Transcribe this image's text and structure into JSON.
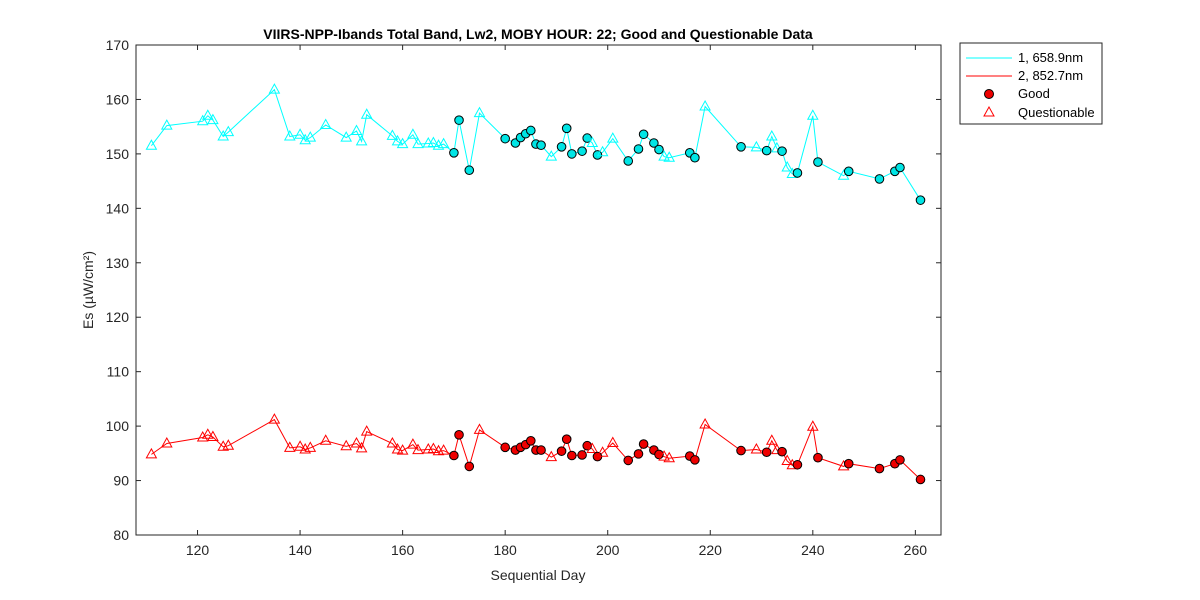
{
  "chart_data": {
    "type": "line",
    "title": "VIIRS-NPP-Ibands Total Band,  Lw2, MOBY HOUR: 22;  Good and Questionable Data",
    "xlabel": "Sequential Day",
    "ylabel": "Es (µW/cm²)",
    "xlim": [
      108,
      265
    ],
    "ylim": [
      80,
      170
    ],
    "xticks": [
      120,
      140,
      160,
      180,
      200,
      220,
      240,
      260
    ],
    "yticks": [
      80,
      90,
      100,
      110,
      120,
      130,
      140,
      150,
      160,
      170
    ],
    "grid": false,
    "legend_position": "outside-top-right",
    "colors": {
      "series1": "#00ffff",
      "series2": "#ff0000",
      "good_fill": "#ee0000",
      "good_fill_cyan": "#00e5e5",
      "axis": "#262626"
    },
    "legend": {
      "line1": "1, 658.9nm",
      "line2": "2, 852.7nm",
      "good": "Good",
      "questionable": "Questionable"
    },
    "series": [
      {
        "name": "1, 658.9nm",
        "color": "#00ffff",
        "points": [
          {
            "x": 111,
            "y": 151.5,
            "q": "Q"
          },
          {
            "x": 114,
            "y": 155.2,
            "q": "Q"
          },
          {
            "x": 121,
            "y": 156.0,
            "q": "Q"
          },
          {
            "x": 122,
            "y": 157.0,
            "q": "Q"
          },
          {
            "x": 123,
            "y": 156.2,
            "q": "Q"
          },
          {
            "x": 125,
            "y": 153.2,
            "q": "Q"
          },
          {
            "x": 126,
            "y": 154.0,
            "q": "Q"
          },
          {
            "x": 135,
            "y": 161.8,
            "q": "Q"
          },
          {
            "x": 138,
            "y": 153.2,
            "q": "Q"
          },
          {
            "x": 140,
            "y": 153.5,
            "q": "Q"
          },
          {
            "x": 141,
            "y": 152.5,
            "q": "Q"
          },
          {
            "x": 142,
            "y": 153.0,
            "q": "Q"
          },
          {
            "x": 145,
            "y": 155.3,
            "q": "Q"
          },
          {
            "x": 149,
            "y": 153.0,
            "q": "Q"
          },
          {
            "x": 151,
            "y": 154.2,
            "q": "Q"
          },
          {
            "x": 152,
            "y": 152.3,
            "q": "Q"
          },
          {
            "x": 153,
            "y": 157.2,
            "q": "Q"
          },
          {
            "x": 158,
            "y": 153.3,
            "q": "Q"
          },
          {
            "x": 159,
            "y": 152.3,
            "q": "Q"
          },
          {
            "x": 160,
            "y": 151.8,
            "q": "Q"
          },
          {
            "x": 162,
            "y": 153.5,
            "q": "Q"
          },
          {
            "x": 163,
            "y": 151.8,
            "q": "Q"
          },
          {
            "x": 165,
            "y": 151.9,
            "q": "Q"
          },
          {
            "x": 166,
            "y": 152.0,
            "q": "Q"
          },
          {
            "x": 167,
            "y": 151.5,
            "q": "Q"
          },
          {
            "x": 168,
            "y": 151.8,
            "q": "Q"
          },
          {
            "x": 170,
            "y": 150.2,
            "q": "G"
          },
          {
            "x": 171,
            "y": 156.2,
            "q": "G"
          },
          {
            "x": 173,
            "y": 147.0,
            "q": "G"
          },
          {
            "x": 175,
            "y": 157.5,
            "q": "Q"
          },
          {
            "x": 180,
            "y": 152.8,
            "q": "G"
          },
          {
            "x": 182,
            "y": 152.0,
            "q": "G"
          },
          {
            "x": 183,
            "y": 153.0,
            "q": "G"
          },
          {
            "x": 184,
            "y": 153.7,
            "q": "G"
          },
          {
            "x": 185,
            "y": 154.3,
            "q": "G"
          },
          {
            "x": 186,
            "y": 151.8,
            "q": "G"
          },
          {
            "x": 187,
            "y": 151.6,
            "q": "G"
          },
          {
            "x": 189,
            "y": 149.5,
            "q": "Q"
          },
          {
            "x": 191,
            "y": 151.3,
            "q": "G"
          },
          {
            "x": 192,
            "y": 154.7,
            "q": "G"
          },
          {
            "x": 193,
            "y": 150.0,
            "q": "G"
          },
          {
            "x": 195,
            "y": 150.5,
            "q": "G"
          },
          {
            "x": 196,
            "y": 152.9,
            "q": "G"
          },
          {
            "x": 197,
            "y": 152.0,
            "q": "Q"
          },
          {
            "x": 198,
            "y": 149.8,
            "q": "G"
          },
          {
            "x": 199,
            "y": 150.3,
            "q": "Q"
          },
          {
            "x": 201,
            "y": 152.8,
            "q": "Q"
          },
          {
            "x": 204,
            "y": 148.7,
            "q": "G"
          },
          {
            "x": 206,
            "y": 150.9,
            "q": "G"
          },
          {
            "x": 207,
            "y": 153.6,
            "q": "G"
          },
          {
            "x": 209,
            "y": 152.0,
            "q": "G"
          },
          {
            "x": 210,
            "y": 150.8,
            "q": "G"
          },
          {
            "x": 211,
            "y": 149.5,
            "q": "Q"
          },
          {
            "x": 212,
            "y": 149.3,
            "q": "Q"
          },
          {
            "x": 216,
            "y": 150.2,
            "q": "G"
          },
          {
            "x": 217,
            "y": 149.3,
            "q": "G"
          },
          {
            "x": 219,
            "y": 158.7,
            "q": "Q"
          },
          {
            "x": 226,
            "y": 151.3,
            "q": "G"
          },
          {
            "x": 229,
            "y": 151.2,
            "q": "Q"
          },
          {
            "x": 231,
            "y": 150.6,
            "q": "G"
          },
          {
            "x": 232,
            "y": 153.2,
            "q": "Q"
          },
          {
            "x": 233,
            "y": 151.0,
            "q": "Q"
          },
          {
            "x": 234,
            "y": 150.5,
            "q": "G"
          },
          {
            "x": 235,
            "y": 147.5,
            "q": "Q"
          },
          {
            "x": 236,
            "y": 146.3,
            "q": "Q"
          },
          {
            "x": 237,
            "y": 146.5,
            "q": "G"
          },
          {
            "x": 240,
            "y": 157.0,
            "q": "Q"
          },
          {
            "x": 241,
            "y": 148.5,
            "q": "G"
          },
          {
            "x": 246,
            "y": 146.0,
            "q": "Q"
          },
          {
            "x": 247,
            "y": 146.8,
            "q": "G"
          },
          {
            "x": 253,
            "y": 145.4,
            "q": "G"
          },
          {
            "x": 256,
            "y": 146.8,
            "q": "G"
          },
          {
            "x": 257,
            "y": 147.5,
            "q": "G"
          },
          {
            "x": 261,
            "y": 141.5,
            "q": "G"
          }
        ]
      },
      {
        "name": "2, 852.7nm",
        "color": "#ff0000",
        "points": [
          {
            "x": 111,
            "y": 94.8,
            "q": "Q"
          },
          {
            "x": 114,
            "y": 96.8,
            "q": "Q"
          },
          {
            "x": 121,
            "y": 97.9,
            "q": "Q"
          },
          {
            "x": 122,
            "y": 98.4,
            "q": "Q"
          },
          {
            "x": 123,
            "y": 98.0,
            "q": "Q"
          },
          {
            "x": 125,
            "y": 96.2,
            "q": "Q"
          },
          {
            "x": 126,
            "y": 96.4,
            "q": "Q"
          },
          {
            "x": 135,
            "y": 101.2,
            "q": "Q"
          },
          {
            "x": 138,
            "y": 96.0,
            "q": "Q"
          },
          {
            "x": 140,
            "y": 96.2,
            "q": "Q"
          },
          {
            "x": 141,
            "y": 95.7,
            "q": "Q"
          },
          {
            "x": 142,
            "y": 96.0,
            "q": "Q"
          },
          {
            "x": 145,
            "y": 97.3,
            "q": "Q"
          },
          {
            "x": 149,
            "y": 96.3,
            "q": "Q"
          },
          {
            "x": 151,
            "y": 96.8,
            "q": "Q"
          },
          {
            "x": 152,
            "y": 95.9,
            "q": "Q"
          },
          {
            "x": 153,
            "y": 99.0,
            "q": "Q"
          },
          {
            "x": 158,
            "y": 96.8,
            "q": "Q"
          },
          {
            "x": 159,
            "y": 95.7,
            "q": "Q"
          },
          {
            "x": 160,
            "y": 95.5,
            "q": "Q"
          },
          {
            "x": 162,
            "y": 96.6,
            "q": "Q"
          },
          {
            "x": 163,
            "y": 95.6,
            "q": "Q"
          },
          {
            "x": 165,
            "y": 95.7,
            "q": "Q"
          },
          {
            "x": 166,
            "y": 95.8,
            "q": "Q"
          },
          {
            "x": 167,
            "y": 95.4,
            "q": "Q"
          },
          {
            "x": 168,
            "y": 95.5,
            "q": "Q"
          },
          {
            "x": 170,
            "y": 94.6,
            "q": "G"
          },
          {
            "x": 171,
            "y": 98.4,
            "q": "G"
          },
          {
            "x": 173,
            "y": 92.6,
            "q": "G"
          },
          {
            "x": 175,
            "y": 99.3,
            "q": "Q"
          },
          {
            "x": 180,
            "y": 96.1,
            "q": "G"
          },
          {
            "x": 182,
            "y": 95.6,
            "q": "G"
          },
          {
            "x": 183,
            "y": 96.1,
            "q": "G"
          },
          {
            "x": 184,
            "y": 96.6,
            "q": "G"
          },
          {
            "x": 185,
            "y": 97.3,
            "q": "G"
          },
          {
            "x": 186,
            "y": 95.6,
            "q": "G"
          },
          {
            "x": 187,
            "y": 95.6,
            "q": "G"
          },
          {
            "x": 189,
            "y": 94.3,
            "q": "Q"
          },
          {
            "x": 191,
            "y": 95.4,
            "q": "G"
          },
          {
            "x": 192,
            "y": 97.6,
            "q": "G"
          },
          {
            "x": 193,
            "y": 94.6,
            "q": "G"
          },
          {
            "x": 195,
            "y": 94.7,
            "q": "G"
          },
          {
            "x": 196,
            "y": 96.4,
            "q": "G"
          },
          {
            "x": 197,
            "y": 95.8,
            "q": "Q"
          },
          {
            "x": 198,
            "y": 94.4,
            "q": "G"
          },
          {
            "x": 199,
            "y": 95.1,
            "q": "Q"
          },
          {
            "x": 201,
            "y": 96.9,
            "q": "Q"
          },
          {
            "x": 204,
            "y": 93.7,
            "q": "G"
          },
          {
            "x": 206,
            "y": 94.9,
            "q": "G"
          },
          {
            "x": 207,
            "y": 96.7,
            "q": "G"
          },
          {
            "x": 209,
            "y": 95.6,
            "q": "G"
          },
          {
            "x": 210,
            "y": 94.8,
            "q": "G"
          },
          {
            "x": 211,
            "y": 94.4,
            "q": "Q"
          },
          {
            "x": 212,
            "y": 94.1,
            "q": "Q"
          },
          {
            "x": 216,
            "y": 94.5,
            "q": "G"
          },
          {
            "x": 217,
            "y": 93.8,
            "q": "G"
          },
          {
            "x": 219,
            "y": 100.3,
            "q": "Q"
          },
          {
            "x": 226,
            "y": 95.5,
            "q": "G"
          },
          {
            "x": 229,
            "y": 95.7,
            "q": "Q"
          },
          {
            "x": 231,
            "y": 95.2,
            "q": "G"
          },
          {
            "x": 232,
            "y": 97.3,
            "q": "Q"
          },
          {
            "x": 233,
            "y": 95.6,
            "q": "Q"
          },
          {
            "x": 234,
            "y": 95.3,
            "q": "G"
          },
          {
            "x": 235,
            "y": 93.6,
            "q": "Q"
          },
          {
            "x": 236,
            "y": 92.8,
            "q": "Q"
          },
          {
            "x": 237,
            "y": 92.9,
            "q": "G"
          },
          {
            "x": 240,
            "y": 99.9,
            "q": "Q"
          },
          {
            "x": 241,
            "y": 94.2,
            "q": "G"
          },
          {
            "x": 246,
            "y": 92.6,
            "q": "Q"
          },
          {
            "x": 247,
            "y": 93.1,
            "q": "G"
          },
          {
            "x": 253,
            "y": 92.2,
            "q": "G"
          },
          {
            "x": 256,
            "y": 93.1,
            "q": "G"
          },
          {
            "x": 257,
            "y": 93.8,
            "q": "G"
          },
          {
            "x": 261,
            "y": 90.2,
            "q": "G"
          }
        ]
      }
    ]
  }
}
